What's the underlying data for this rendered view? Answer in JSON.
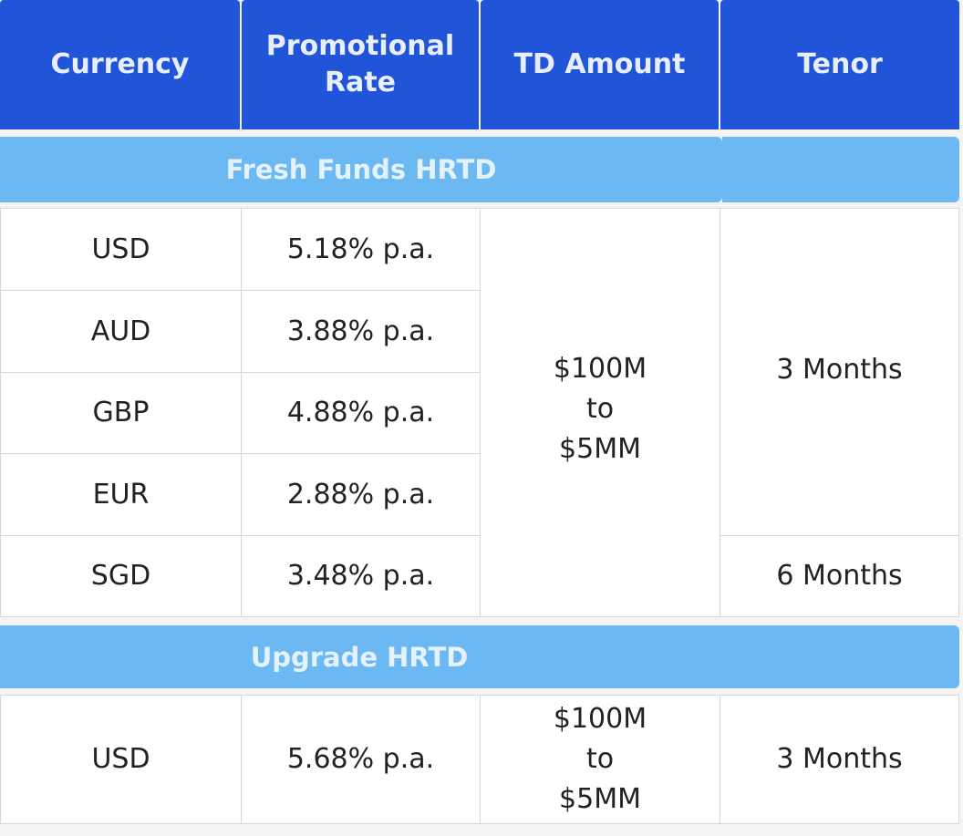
{
  "table": {
    "headers": [
      "Currency",
      "Promotional Rate",
      "TD Amount",
      "Tenor"
    ],
    "sections": [
      {
        "title": "Fresh Funds HRTD",
        "rows": [
          {
            "currency": "USD",
            "rate": "5.18%  p.a."
          },
          {
            "currency": "AUD",
            "rate": "3.88% p.a."
          },
          {
            "currency": "GBP",
            "rate": "4.88% p.a."
          },
          {
            "currency": "EUR",
            "rate": "2.88% p.a."
          },
          {
            "currency": "SGD",
            "rate": "3.48% p.a."
          }
        ],
        "td_amount": [
          "$100M",
          "to",
          "$5MM"
        ],
        "tenor_first_four": "3 Months",
        "tenor_last": "6 Months"
      },
      {
        "title": "Upgrade HRTD",
        "rows": [
          {
            "currency": "USD",
            "rate": "5.68% p.a."
          }
        ],
        "td_amount": [
          "$100M",
          "to",
          "$5MM"
        ],
        "tenor": "3 Months"
      }
    ]
  },
  "colors": {
    "header": "#2155d9",
    "section_band": "#6cb8f3"
  }
}
